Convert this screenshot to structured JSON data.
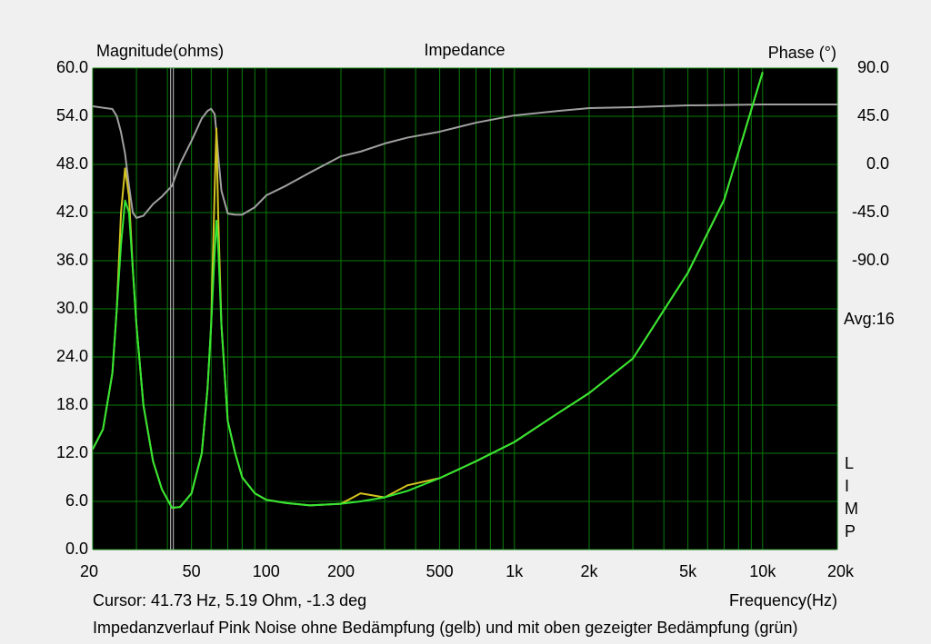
{
  "chart_data": {
    "type": "line",
    "title": "Impedance",
    "y_label": "Magnitude(ohms)",
    "y2_label": "Phase (°)",
    "x_label": "Frequency(Hz)",
    "cursor_text": "Cursor: 41.73 Hz, 5.19 Ohm, -1.3 deg",
    "caption": "Impedanzverlauf Pink Noise ohne Bedämpfung (gelb) und mit oben gezeigter Bedämpfung (grün)",
    "avg_text": "Avg:16",
    "side_label": [
      "L",
      "I",
      "M",
      "P"
    ],
    "x_log": true,
    "grid": true,
    "cursor_x": 41.73,
    "xlim": [
      20,
      20000
    ],
    "xticks": [
      20,
      50,
      100,
      200,
      500,
      {
        "value": 1000,
        "label": "1k"
      },
      {
        "value": 2000,
        "label": "2k"
      },
      {
        "value": 5000,
        "label": "5k"
      },
      {
        "value": 10000,
        "label": "10k"
      },
      {
        "value": 20000,
        "label": "20k"
      }
    ],
    "xminor_ticks": [
      30,
      40,
      60,
      70,
      80,
      90,
      300,
      400,
      600,
      700,
      800,
      900,
      3000,
      4000,
      6000,
      7000,
      8000,
      9000
    ],
    "ylim": [
      0,
      60
    ],
    "yticks": [
      {
        "value": 0,
        "label": "0.0"
      },
      {
        "value": 6,
        "label": "6.0"
      },
      {
        "value": 12,
        "label": "12.0"
      },
      {
        "value": 18,
        "label": "18.0"
      },
      {
        "value": 24,
        "label": "24.0"
      },
      {
        "value": 30,
        "label": "30.0"
      },
      {
        "value": 36,
        "label": "36.0"
      },
      {
        "value": 42,
        "label": "42.0"
      },
      {
        "value": 48,
        "label": "48.0"
      },
      {
        "value": 54,
        "label": "54.0"
      },
      {
        "value": 60,
        "label": "60.0"
      }
    ],
    "y2lim": [
      -360,
      90
    ],
    "y2ticks": [
      {
        "value": 90,
        "label": "90.0"
      },
      {
        "value": 45,
        "label": "45.0"
      },
      {
        "value": 0,
        "label": "0.0"
      },
      {
        "value": -45,
        "label": "-45.0"
      },
      {
        "value": -90,
        "label": "-90.0"
      }
    ],
    "x": [
      20,
      22,
      24,
      25,
      26,
      27,
      28,
      29,
      30,
      32,
      35,
      38,
      41.73,
      45,
      50,
      55,
      58,
      60,
      62,
      63,
      64,
      66,
      70,
      75,
      80,
      90,
      100,
      120,
      150,
      200,
      240,
      300,
      370,
      500,
      700,
      1000,
      1500,
      2000,
      3000,
      5000,
      7000,
      10000,
      20000
    ],
    "series": [
      {
        "color": "#a0a0a0",
        "axis": "y2",
        "values": [
          54.3,
          53,
          51.8,
          45,
          30,
          10,
          -20,
          -45,
          -50,
          -48,
          -37,
          -30,
          -20,
          0.8,
          22,
          43,
          50,
          52,
          47,
          30,
          9,
          -24.6,
          -46,
          -47,
          -47,
          -40,
          -29,
          -20,
          -7.6,
          7.6,
          12,
          19.5,
          25,
          30.6,
          39,
          45.8,
          50,
          52.6,
          53.5,
          55.2,
          55.5,
          56,
          56
        ]
      },
      {
        "color": "#d4c420",
        "values": [
          12.5,
          15,
          22,
          30,
          42,
          47.5,
          44,
          35,
          28,
          18,
          11,
          7.5,
          5.2,
          5.3,
          7,
          12,
          20,
          28,
          45,
          52.5,
          42,
          28,
          16,
          12,
          9,
          7,
          6.2,
          5.8,
          5.5,
          5.7,
          7,
          6.5,
          8,
          8.9,
          11,
          13.4,
          17,
          19.5,
          23.8,
          34.5,
          43.6,
          59.5,
          null
        ]
      },
      {
        "color": "#33e633",
        "values": [
          12.5,
          15,
          22,
          30,
          38,
          43.5,
          42,
          35,
          28,
          18,
          11,
          7.5,
          5.2,
          5.3,
          7,
          12,
          20,
          28,
          37,
          41,
          38,
          28,
          16,
          12,
          9,
          7,
          6.2,
          5.8,
          5.5,
          5.7,
          6,
          6.5,
          7.3,
          8.9,
          11,
          13.4,
          17,
          19.5,
          23.8,
          34.5,
          43.6,
          59.5,
          null
        ]
      }
    ]
  }
}
